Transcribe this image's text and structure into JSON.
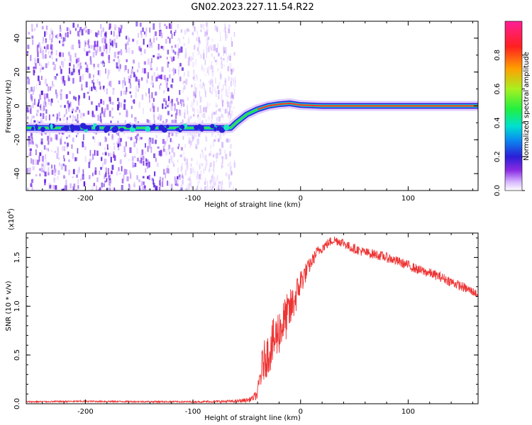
{
  "title": "GN02.2023.227.11.54.R22",
  "chart_data": [
    {
      "type": "heatmap",
      "xlabel": "Height of straight line (km)",
      "ylabel": "Frequency (Hz)",
      "xlim": [
        -255,
        165
      ],
      "ylim": [
        -50,
        50
      ],
      "x_ticks": [
        -200,
        -100,
        0,
        100
      ],
      "x_tick_labels": [
        "-200",
        "-100",
        "0",
        "100"
      ],
      "y_ticks": [
        -40,
        -20,
        0,
        20,
        40
      ],
      "y_tick_labels": [
        "-40",
        "-20",
        "0",
        "20",
        "40"
      ],
      "colorbar": {
        "label": "Normalized spectral amplitude",
        "range": [
          0,
          1
        ],
        "ticks": [
          0.0,
          0.2,
          0.4,
          0.6,
          0.8
        ],
        "tick_labels": [
          "0.0",
          "0.2",
          "0.4",
          "0.6",
          "0.8"
        ],
        "colors": [
          "#ffffff",
          "#cc99ff",
          "#7a1fe0",
          "#3a1fd6",
          "#0aa0f0",
          "#00e0c8",
          "#40f040",
          "#c8f020",
          "#ff8800",
          "#ff2020",
          "#ff2090"
        ]
      },
      "noise_region_x": [
        -255,
        -62
      ],
      "signal_line": {
        "x": [
          -255,
          -65,
          -60,
          -50,
          -40,
          -30,
          -20,
          -10,
          0,
          20,
          40,
          60,
          80,
          100,
          120,
          165
        ],
        "y": [
          -13,
          -13,
          -10,
          -5,
          -2,
          0,
          1,
          1.5,
          0.5,
          0,
          0,
          0,
          0,
          0,
          0,
          0
        ]
      },
      "grid": false
    },
    {
      "type": "line",
      "xlabel": "Height of straight line (km)",
      "ylabel": "SNR (10 * v/v)",
      "multiplier_label": "(x10",
      "multiplier_exp": "4",
      "xlim": [
        -255,
        165
      ],
      "ylim": [
        0,
        17500
      ],
      "x_ticks": [
        -200,
        -100,
        0,
        100
      ],
      "x_tick_labels": [
        "-200",
        "-100",
        "0",
        "100"
      ],
      "y_ticks": [
        0,
        5000,
        10000,
        15000
      ],
      "y_tick_labels": [
        "0.0",
        "0.5",
        "1.0",
        "1.5"
      ],
      "color": "#ee3333",
      "grid": false,
      "x": [
        -255,
        -200,
        -150,
        -100,
        -60,
        -48,
        -44,
        -40,
        -38,
        -35,
        -30,
        -25,
        -20,
        -15,
        -10,
        -5,
        0,
        5,
        10,
        15,
        20,
        25,
        30,
        35,
        40,
        45,
        50,
        60,
        70,
        80,
        90,
        100,
        110,
        120,
        130,
        140,
        150,
        160,
        165
      ],
      "y": [
        200,
        250,
        220,
        200,
        250,
        400,
        600,
        1000,
        2500,
        4200,
        5200,
        6300,
        7500,
        8500,
        9500,
        10800,
        12500,
        13500,
        14500,
        15500,
        16000,
        16400,
        16800,
        16700,
        16500,
        16100,
        15900,
        15500,
        15300,
        15000,
        14600,
        14200,
        13700,
        13400,
        13000,
        12500,
        12000,
        11500,
        11200
      ],
      "noise_amplitude": [
        80,
        80,
        80,
        80,
        150,
        250,
        300,
        600,
        1500,
        2000,
        2200,
        2500,
        2500,
        2400,
        2200,
        1800,
        1500,
        1000,
        700,
        600,
        550,
        500,
        500,
        500,
        500,
        500,
        500,
        500,
        500,
        500,
        500,
        500,
        500,
        500,
        500,
        500,
        500,
        450,
        450
      ]
    }
  ]
}
